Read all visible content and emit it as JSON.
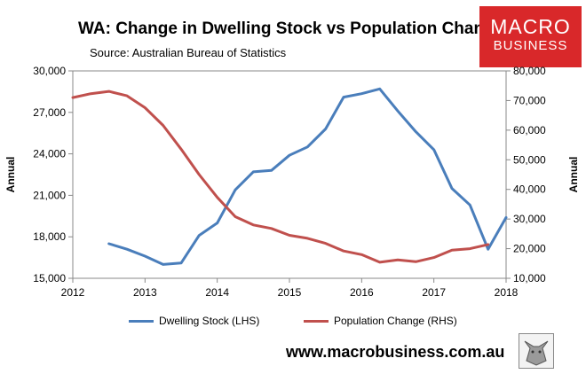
{
  "header": {
    "title": "WA: Change in Dwelling Stock vs Population Change",
    "subtitle": "Source: Australian Bureau of Statistics"
  },
  "logo": {
    "line1": "MACRO",
    "line2": "BUSINESS",
    "color": "#d9282a"
  },
  "website": "www.macrobusiness.com.au",
  "chart_data": {
    "type": "line",
    "title": "WA: Change in Dwelling Stock vs Population Change",
    "ylabel_left": "Annual",
    "ylabel_right": "Annual",
    "xlim": [
      2012,
      2018
    ],
    "x_ticks": [
      2012,
      2013,
      2014,
      2015,
      2016,
      2017,
      2018
    ],
    "ylim_left": [
      15000,
      30000
    ],
    "ylim_right": [
      10000,
      80000
    ],
    "y_ticks_left": [
      15000,
      18000,
      21000,
      24000,
      27000,
      30000
    ],
    "y_ticks_left_labels": [
      "15,000",
      "18,000",
      "21,000",
      "24,000",
      "27,000",
      "30,000"
    ],
    "y_ticks_right": [
      10000,
      20000,
      30000,
      40000,
      50000,
      60000,
      70000,
      80000
    ],
    "y_ticks_right_labels": [
      "10,000",
      "20,000",
      "30,000",
      "40,000",
      "50,000",
      "60,000",
      "70,000",
      "80,000"
    ],
    "legend_position": "bottom",
    "series": [
      {
        "name": "Dwelling Stock (LHS)",
        "axis": "left",
        "color": "#4a7ebb",
        "points": [
          [
            2012.5,
            17500
          ],
          [
            2012.75,
            17100
          ],
          [
            2013.0,
            16600
          ],
          [
            2013.25,
            16000
          ],
          [
            2013.5,
            16100
          ],
          [
            2013.75,
            18100
          ],
          [
            2014.0,
            19000
          ],
          [
            2014.25,
            21400
          ],
          [
            2014.5,
            22700
          ],
          [
            2014.75,
            22800
          ],
          [
            2015.0,
            23900
          ],
          [
            2015.25,
            24500
          ],
          [
            2015.5,
            25800
          ],
          [
            2015.75,
            28100
          ],
          [
            2016.0,
            28350
          ],
          [
            2016.25,
            28700
          ],
          [
            2016.5,
            27100
          ],
          [
            2016.75,
            25600
          ],
          [
            2017.0,
            24300
          ],
          [
            2017.25,
            21500
          ],
          [
            2017.5,
            20300
          ],
          [
            2017.75,
            17100
          ],
          [
            2018.0,
            19400
          ]
        ]
      },
      {
        "name": "Population Change (RHS)",
        "axis": "right",
        "color": "#c0504d",
        "points": [
          [
            2012.0,
            71000
          ],
          [
            2012.25,
            72300
          ],
          [
            2012.5,
            73100
          ],
          [
            2012.75,
            71600
          ],
          [
            2013.0,
            67600
          ],
          [
            2013.25,
            61600
          ],
          [
            2013.5,
            53600
          ],
          [
            2013.75,
            45000
          ],
          [
            2014.0,
            37300
          ],
          [
            2014.25,
            30800
          ],
          [
            2014.5,
            28000
          ],
          [
            2014.75,
            26800
          ],
          [
            2015.0,
            24500
          ],
          [
            2015.25,
            23500
          ],
          [
            2015.5,
            21800
          ],
          [
            2015.75,
            19200
          ],
          [
            2016.0,
            18000
          ],
          [
            2016.25,
            15400
          ],
          [
            2016.5,
            16200
          ],
          [
            2016.75,
            15600
          ],
          [
            2017.0,
            17000
          ],
          [
            2017.25,
            19500
          ],
          [
            2017.5,
            20000
          ],
          [
            2017.75,
            21400
          ]
        ]
      }
    ]
  }
}
